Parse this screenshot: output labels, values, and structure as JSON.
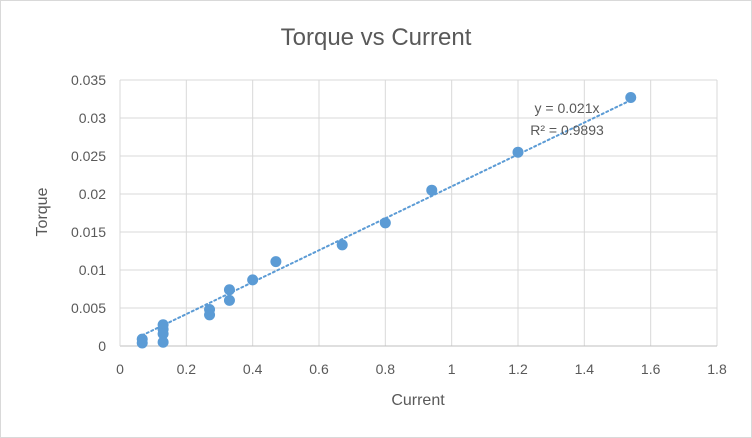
{
  "chart_data": {
    "type": "scatter",
    "title": "Torque vs Current",
    "xlabel": "Current",
    "ylabel": "Torque",
    "xlim": [
      0,
      1.8
    ],
    "ylim": [
      0,
      0.035
    ],
    "x_ticks": [
      "0",
      "0.2",
      "0.4",
      "0.6",
      "0.8",
      "1",
      "1.2",
      "1.4",
      "1.6",
      "1.8"
    ],
    "y_ticks": [
      "0",
      "0.005",
      "0.01",
      "0.015",
      "0.02",
      "0.025",
      "0.03",
      "0.035"
    ],
    "grid": true,
    "series": [
      {
        "color": "#5b9bd5",
        "points": [
          {
            "x": 0.067,
            "y": 0.0009
          },
          {
            "x": 0.067,
            "y": 0.0004
          },
          {
            "x": 0.13,
            "y": 0.0028
          },
          {
            "x": 0.13,
            "y": 0.0022
          },
          {
            "x": 0.13,
            "y": 0.0016
          },
          {
            "x": 0.13,
            "y": 0.0005
          },
          {
            "x": 0.27,
            "y": 0.0048
          },
          {
            "x": 0.27,
            "y": 0.0041
          },
          {
            "x": 0.33,
            "y": 0.0074
          },
          {
            "x": 0.33,
            "y": 0.006
          },
          {
            "x": 0.4,
            "y": 0.0087
          },
          {
            "x": 0.47,
            "y": 0.0111
          },
          {
            "x": 0.67,
            "y": 0.0133
          },
          {
            "x": 0.8,
            "y": 0.0162
          },
          {
            "x": 0.94,
            "y": 0.0205
          },
          {
            "x": 1.2,
            "y": 0.0255
          },
          {
            "x": 1.54,
            "y": 0.0327
          }
        ]
      }
    ],
    "trendline": {
      "slope": 0.021,
      "intercept": 0,
      "x_range": [
        0.067,
        1.54
      ],
      "equation": "y = 0.021x",
      "r_squared": "R² = 0.9893"
    }
  }
}
